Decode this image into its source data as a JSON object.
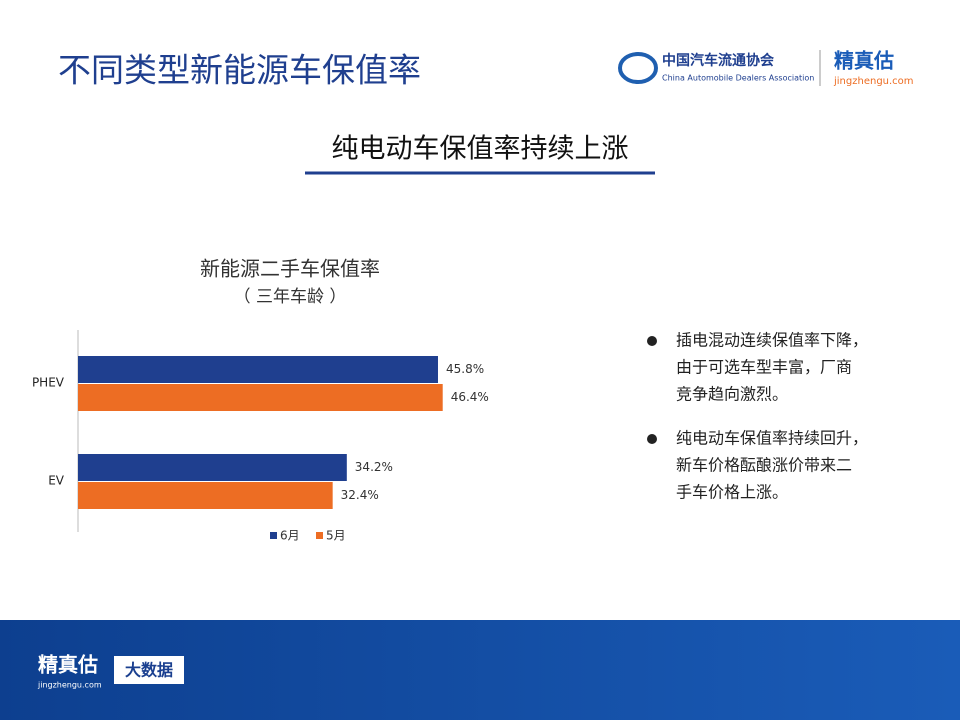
{
  "header": {
    "title": "不同类型新能源车保值率",
    "logo_cn": "中国汽车流通协会",
    "logo_en": "China Automobile Dealers Association",
    "brand": "精真估",
    "brand_url": "jingzhengu.com"
  },
  "headline": "纯电动车保值率持续上涨",
  "chart_data": {
    "type": "hbar",
    "title": "新能源二手车保值率",
    "subtitle": "（ 三年车龄 ）",
    "categories": [
      "PHEV",
      "EV"
    ],
    "series": [
      {
        "name": "6月",
        "color": "#1f3f8f",
        "values": [
          45.8,
          34.2
        ],
        "value_labels": [
          "45.8%",
          "34.2%"
        ]
      },
      {
        "name": "5月",
        "color": "#ed6d23",
        "values": [
          46.4,
          32.4
        ],
        "value_labels": [
          "46.4%",
          "32.4%"
        ]
      }
    ],
    "legend": "bottom"
  },
  "bullets": [
    [
      "插电混动连续保值率下降，",
      "由于可选车型丰富，厂商",
      "竞争趋向激烈。"
    ],
    [
      "纯电动车保值率持续回升，",
      "新车价格酝酿涨价带来二",
      "手车价格上涨。"
    ]
  ],
  "footer": {
    "brand": "精真估",
    "brand_url": "jingzhengu.com",
    "tag": "大数据"
  }
}
